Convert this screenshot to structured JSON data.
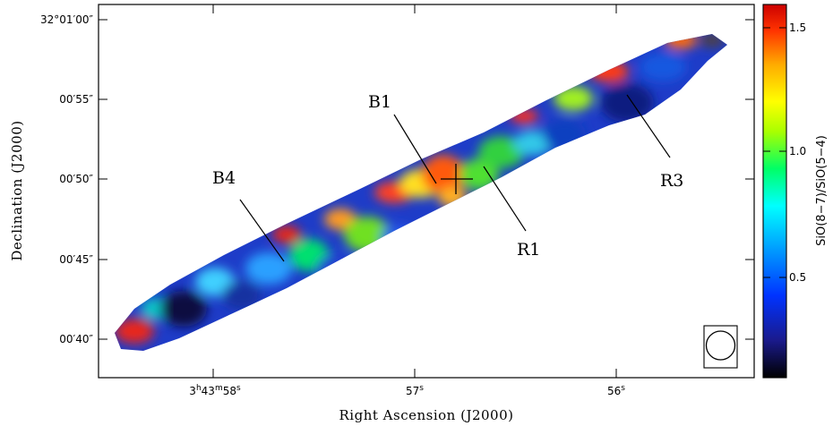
{
  "chart_data": {
    "type": "heatmap",
    "title": "",
    "xlabel": "Right Ascension (J2000)",
    "ylabel": "Declination (J2000)",
    "x_ticks": [
      {
        "label": "3h43m58s",
        "h": "3",
        "m": "43",
        "s": "58"
      },
      {
        "label": "57s",
        "s": "57"
      },
      {
        "label": "56s",
        "s": "56"
      }
    ],
    "y_ticks": [
      "32°01′00″",
      "00′55″",
      "00′50″",
      "00′45″",
      "00′40″"
    ],
    "colorbar": {
      "label": "SiO(8−7)/SiO(5−4)",
      "ticks": [
        "1.5",
        "1.0",
        "0.5"
      ],
      "range": [
        0,
        1.6
      ],
      "colors": [
        "#000000",
        "#1a1a8c",
        "#0033ff",
        "#00aaff",
        "#00ffff",
        "#00ff66",
        "#aaff00",
        "#ffff00",
        "#ffaa00",
        "#ff3300",
        "#cc0000"
      ]
    },
    "annotations": [
      "B1",
      "B4",
      "R1",
      "R3"
    ],
    "grid": false,
    "beam": "circle"
  }
}
